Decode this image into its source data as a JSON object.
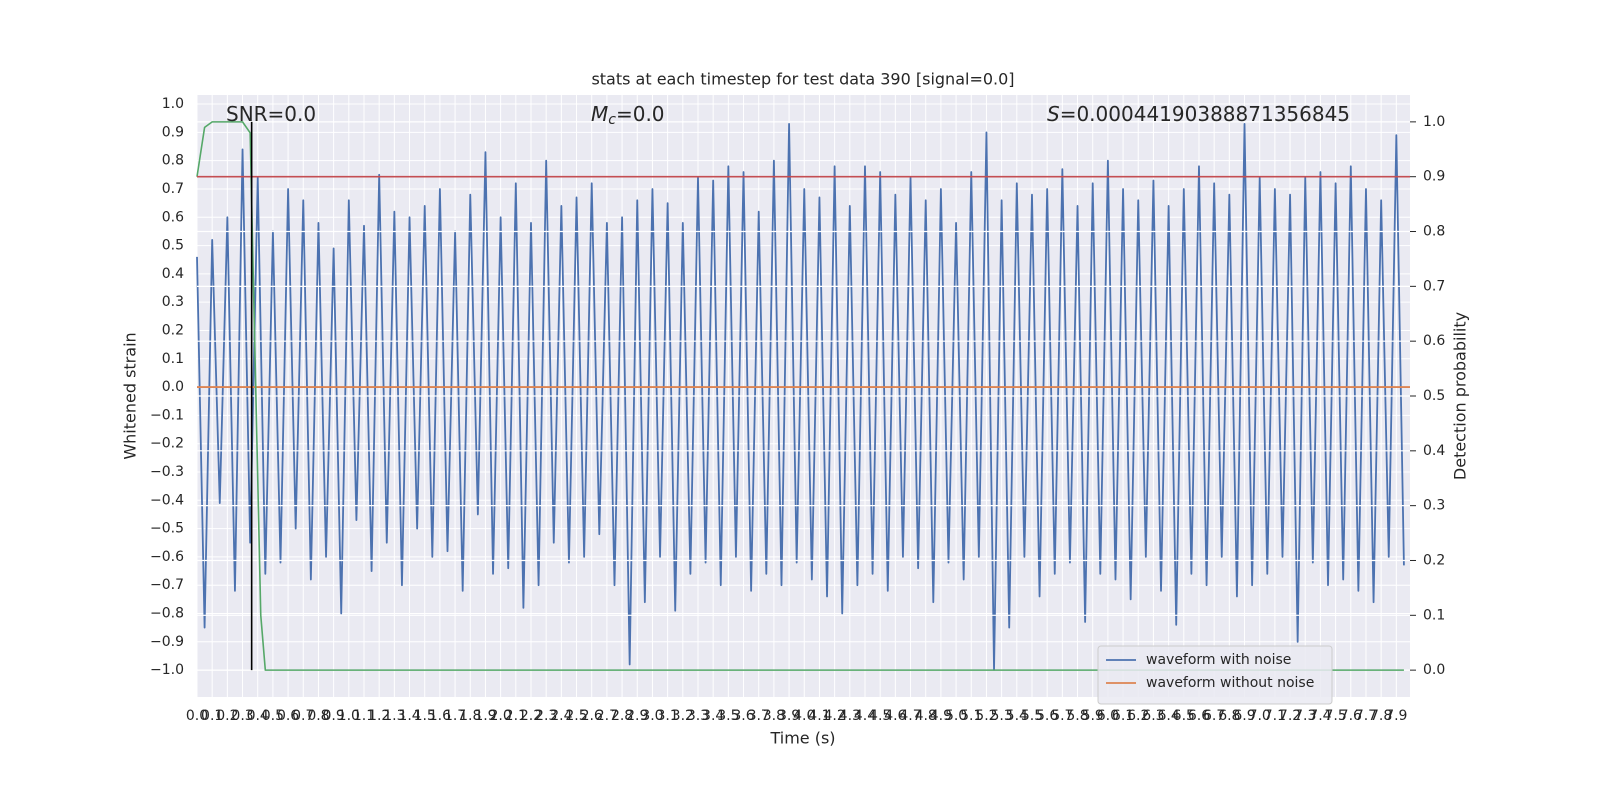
{
  "chart_data": {
    "type": "line",
    "title": "stats at each timestep for test data 390 [signal=0.0]",
    "xlabel": "Time (s)",
    "ylabel": "Whitened strain",
    "y2label": "Detection probability",
    "annotations": [
      {
        "text": "SNR=0.0"
      },
      {
        "symbol": "M",
        "subscript": "c",
        "text": "=0.0"
      },
      {
        "symbol": "S",
        "text": "=0.00044190388871356845"
      }
    ],
    "xlim": [
      0,
      7.99
    ],
    "ylim": [
      -1.095,
      1.032
    ],
    "y2lim": [
      -0.049,
      1.049
    ],
    "xticks": [
      {
        "value": 0,
        "label": "0.0"
      },
      0.1,
      0.2,
      0.3,
      0.4,
      0.5,
      0.6,
      0.7,
      0.8,
      0.9,
      {
        "value": 1,
        "label": "1.0"
      },
      1.1,
      1.2,
      1.3,
      1.4,
      1.5,
      1.6,
      1.7,
      1.8,
      1.9,
      {
        "value": 2,
        "label": "2.0"
      },
      2.1,
      2.2,
      2.3,
      2.4,
      2.5,
      2.6,
      2.7,
      2.8,
      2.9,
      {
        "value": 3,
        "label": "3.0"
      },
      3.1,
      3.2,
      3.3,
      3.4,
      3.5,
      3.6,
      3.7,
      3.8,
      3.9,
      {
        "value": 4,
        "label": "4.0"
      },
      4.1,
      4.2,
      4.3,
      4.4,
      4.5,
      4.6,
      4.7,
      4.8,
      4.9,
      {
        "value": 5,
        "label": "5.0"
      },
      5.1,
      5.2,
      5.3,
      5.4,
      5.5,
      5.6,
      5.7,
      5.8,
      5.9,
      {
        "value": 6,
        "label": "6.0"
      },
      6.1,
      6.2,
      6.3,
      6.4,
      6.5,
      6.6,
      6.7,
      6.8,
      6.9,
      {
        "value": 7,
        "label": "7.0"
      },
      7.1,
      7.2,
      7.3,
      7.4,
      7.5,
      7.6,
      7.7,
      7.8,
      7.9
    ],
    "yticks": [
      {
        "value": 1,
        "label": "1.0"
      },
      0.9,
      0.8,
      0.7,
      0.6,
      0.5,
      0.4,
      0.3,
      0.2,
      0.1,
      {
        "value": 0,
        "label": "0.0"
      },
      {
        "value": -0.1,
        "label": "−0.1"
      },
      {
        "value": -0.2,
        "label": "−0.2"
      },
      {
        "value": -0.3,
        "label": "−0.3"
      },
      {
        "value": -0.4,
        "label": "−0.4"
      },
      {
        "value": -0.5,
        "label": "−0.5"
      },
      {
        "value": -0.6,
        "label": "−0.6"
      },
      {
        "value": -0.7,
        "label": "−0.7"
      },
      {
        "value": -0.8,
        "label": "−0.8"
      },
      {
        "value": -0.9,
        "label": "−0.9"
      },
      {
        "value": -1,
        "label": "−1.0"
      }
    ],
    "y2ticks": [
      {
        "value": 0,
        "label": "0.0"
      },
      0.1,
      0.2,
      0.3,
      0.4,
      0.5,
      0.6,
      0.7,
      0.8,
      0.9,
      {
        "value": 1,
        "label": "1.0"
      }
    ],
    "grid": true,
    "legend": "lower right",
    "series": [
      {
        "name": "waveform with noise",
        "color": "#4c72b0",
        "x": [
          0,
          0.05,
          0.1,
          0.15,
          0.2,
          0.25,
          0.3,
          0.35,
          0.4,
          0.45,
          0.5,
          0.55,
          0.6,
          0.65,
          0.7,
          0.75,
          0.8,
          0.85,
          0.9,
          0.95,
          1,
          1.05,
          1.1,
          1.15,
          1.2,
          1.25,
          1.3,
          1.35,
          1.4,
          1.45,
          1.5,
          1.55,
          1.6,
          1.65,
          1.7,
          1.75,
          1.8,
          1.85,
          1.9,
          1.95,
          2,
          2.05,
          2.1,
          2.15,
          2.2,
          2.25,
          2.3,
          2.35,
          2.4,
          2.45,
          2.5,
          2.55,
          2.6,
          2.65,
          2.7,
          2.75,
          2.8,
          2.85,
          2.9,
          2.95,
          3,
          3.05,
          3.1,
          3.15,
          3.2,
          3.25,
          3.3,
          3.35,
          3.4,
          3.45,
          3.5,
          3.55,
          3.6,
          3.65,
          3.7,
          3.75,
          3.8,
          3.85,
          3.9,
          3.95,
          4,
          4.05,
          4.1,
          4.15,
          4.2,
          4.25,
          4.3,
          4.35,
          4.4,
          4.45,
          4.5,
          4.55,
          4.6,
          4.65,
          4.7,
          4.75,
          4.8,
          4.85,
          4.9,
          4.95,
          5,
          5.05,
          5.1,
          5.15,
          5.2,
          5.25,
          5.3,
          5.35,
          5.4,
          5.45,
          5.5,
          5.55,
          5.6,
          5.65,
          5.7,
          5.75,
          5.8,
          5.85,
          5.9,
          5.95,
          6,
          6.05,
          6.1,
          6.15,
          6.2,
          6.25,
          6.3,
          6.35,
          6.4,
          6.45,
          6.5,
          6.55,
          6.6,
          6.65,
          6.7,
          6.75,
          6.8,
          6.85,
          6.9,
          6.95,
          7,
          7.05,
          7.1,
          7.15,
          7.2,
          7.25,
          7.3,
          7.35,
          7.4,
          7.45,
          7.5,
          7.55,
          7.6,
          7.65,
          7.7,
          7.75,
          7.8,
          7.85,
          7.9,
          7.95
        ],
        "values": [
          0.46,
          -0.85,
          0.52,
          -0.41,
          0.6,
          -0.72,
          0.84,
          -0.55,
          0.74,
          -0.66,
          0.55,
          -0.62,
          0.7,
          -0.5,
          0.66,
          -0.68,
          0.58,
          -0.6,
          0.49,
          -0.8,
          0.66,
          -0.47,
          0.57,
          -0.65,
          0.75,
          -0.55,
          0.62,
          -0.7,
          0.6,
          -0.5,
          0.64,
          -0.6,
          0.7,
          -0.58,
          0.55,
          -0.72,
          0.68,
          -0.45,
          0.83,
          -0.66,
          0.6,
          -0.64,
          0.72,
          -0.78,
          0.58,
          -0.7,
          0.8,
          -0.55,
          0.64,
          -0.62,
          0.67,
          -0.6,
          0.72,
          -0.52,
          0.58,
          -0.7,
          0.6,
          -0.98,
          0.66,
          -0.76,
          0.7,
          -0.6,
          0.65,
          -0.79,
          0.58,
          -0.66,
          0.74,
          -0.62,
          0.73,
          -0.7,
          0.78,
          -0.6,
          0.76,
          -0.72,
          0.62,
          -0.66,
          0.8,
          -0.7,
          0.93,
          -0.62,
          0.7,
          -0.68,
          0.67,
          -0.74,
          0.78,
          -0.8,
          0.64,
          -0.7,
          0.78,
          -0.66,
          0.76,
          -0.72,
          0.68,
          -0.6,
          0.74,
          -0.64,
          0.66,
          -0.76,
          0.7,
          -0.62,
          0.58,
          -0.68,
          0.76,
          -0.6,
          0.9,
          -1.0,
          0.66,
          -0.85,
          0.72,
          -0.6,
          0.68,
          -0.74,
          0.7,
          -0.66,
          0.77,
          -0.62,
          0.64,
          -0.83,
          0.72,
          -0.66,
          0.8,
          -0.68,
          0.7,
          -0.75,
          0.66,
          -0.6,
          0.73,
          -0.72,
          0.64,
          -0.84,
          0.7,
          -0.66,
          0.78,
          -0.7,
          0.72,
          -0.6,
          0.68,
          -0.74,
          0.93,
          -0.7,
          0.74,
          -0.66,
          0.7,
          -0.6,
          0.68,
          -0.9,
          0.74,
          -0.62,
          0.76,
          -0.7,
          0.72,
          -0.68,
          0.78,
          -0.72,
          0.7,
          -0.76,
          0.66,
          -0.6,
          0.89,
          -0.63
        ]
      },
      {
        "name": "waveform without noise",
        "color": "#dd8452",
        "x": [
          0,
          7.99
        ],
        "values": [
          0,
          0
        ]
      },
      {
        "color": "#55a868",
        "axis": "y2",
        "x": [
          0,
          0.05,
          0.1,
          0.2,
          0.3,
          0.35,
          0.38,
          0.42,
          0.45,
          0.5,
          7.95
        ],
        "values": [
          0.9,
          0.99,
          1.0,
          1.0,
          1.0,
          0.98,
          0.6,
          0.1,
          0.0,
          0.0,
          0.0
        ]
      }
    ],
    "hlines": [
      {
        "y2": 0.9,
        "color": "#c44e52"
      }
    ],
    "vlines": [
      {
        "x": 0.36,
        "y2": [
          0,
          1
        ],
        "color": "#000000"
      }
    ]
  }
}
